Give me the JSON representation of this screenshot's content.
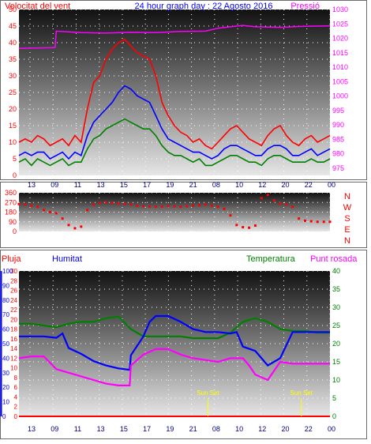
{
  "chart_data": [
    {
      "type": "line",
      "title": "24 hour graph day : 22 Agosto 2016",
      "series": [
        {
          "name": "Velocitat del vent",
          "color": "#ff0000",
          "axis": "left",
          "x": [
            13.0,
            13.5,
            14.0,
            14.5,
            15.0,
            15.5,
            16.0,
            16.5,
            17.0,
            17.5,
            18.0,
            18.5,
            19.0,
            19.5,
            20.0,
            20.5,
            21.0,
            21.5,
            22.0,
            22.5,
            23.0,
            23.5,
            24.0,
            24.5,
            25.0,
            25.5,
            26.0,
            26.5,
            27.0,
            27.5,
            28.0,
            28.5,
            29.0,
            29.5,
            30.0,
            30.5,
            31.0,
            31.5,
            32.0,
            32.5,
            33.0,
            33.5,
            34.0,
            34.5,
            35.0,
            35.5,
            36.0,
            36.5,
            37.0,
            37.5,
            38.0
          ],
          "values": [
            10,
            11,
            10,
            12,
            11,
            9,
            10,
            11,
            9,
            12,
            10,
            20,
            28,
            30,
            35,
            38,
            40,
            41,
            39,
            37,
            36,
            35,
            30,
            22,
            18,
            15,
            13,
            12,
            10,
            11,
            9,
            8,
            10,
            12,
            14,
            15,
            13,
            11,
            10,
            9,
            12,
            14,
            15,
            12,
            10,
            9,
            11,
            12,
            10,
            11,
            12
          ]
        },
        {
          "name": "",
          "color": "#0000ff",
          "axis": "left",
          "x": [
            13.0,
            13.5,
            14.0,
            14.5,
            15.0,
            15.5,
            16.0,
            16.5,
            17.0,
            17.5,
            18.0,
            18.5,
            19.0,
            19.5,
            20.0,
            20.5,
            21.0,
            21.5,
            22.0,
            22.5,
            23.0,
            23.5,
            24.0,
            24.5,
            25.0,
            25.5,
            26.0,
            26.5,
            27.0,
            27.5,
            28.0,
            28.5,
            29.0,
            29.5,
            30.0,
            30.5,
            31.0,
            31.5,
            32.0,
            32.5,
            33.0,
            33.5,
            34.0,
            34.5,
            35.0,
            35.5,
            36.0,
            36.5,
            37.0,
            37.5,
            38.0
          ],
          "values": [
            6,
            7,
            6,
            7,
            7,
            5,
            6,
            7,
            5,
            7,
            6,
            12,
            16,
            18,
            20,
            22,
            25,
            27,
            26,
            24,
            23,
            22,
            18,
            14,
            11,
            10,
            9,
            8,
            7,
            7,
            6,
            5,
            6,
            8,
            9,
            9,
            8,
            7,
            6,
            6,
            8,
            9,
            9,
            8,
            6,
            6,
            7,
            8,
            6,
            7,
            8
          ]
        },
        {
          "name": "",
          "color": "#008000",
          "axis": "left",
          "x": [
            13.0,
            13.5,
            14.0,
            14.5,
            15.0,
            15.5,
            16.0,
            16.5,
            17.0,
            17.5,
            18.0,
            18.5,
            19.0,
            19.5,
            20.0,
            20.5,
            21.0,
            21.5,
            22.0,
            22.5,
            23.0,
            23.5,
            24.0,
            24.5,
            25.0,
            25.5,
            26.0,
            26.5,
            27.0,
            27.5,
            28.0,
            28.5,
            29.0,
            29.5,
            30.0,
            30.5,
            31.0,
            31.5,
            32.0,
            32.5,
            33.0,
            33.5,
            34.0,
            34.5,
            35.0,
            35.5,
            36.0,
            36.5,
            37.0,
            37.5,
            38.0
          ],
          "values": [
            4,
            5,
            3,
            5,
            4,
            3,
            4,
            5,
            3,
            4,
            4,
            8,
            11,
            12,
            14,
            15,
            16,
            17,
            16,
            15,
            14,
            14,
            12,
            9,
            7,
            6,
            6,
            5,
            4,
            5,
            3,
            3,
            4,
            5,
            6,
            6,
            5,
            4,
            4,
            3,
            5,
            6,
            6,
            5,
            4,
            4,
            4,
            5,
            4,
            4,
            5
          ]
        },
        {
          "name": "Pressió",
          "color": "#ff00ff",
          "axis": "right",
          "x": [
            13.0,
            15.9,
            16.0,
            18.0,
            20.0,
            22.0,
            24.0,
            26.0,
            28.0,
            29.0,
            30.0,
            31.0,
            32.0,
            34.0,
            36.0,
            38.0
          ],
          "values": [
            1016.5,
            1016.8,
            1022.5,
            1022.0,
            1021.8,
            1022.1,
            1022.0,
            1022.4,
            1022.5,
            1023.5,
            1024.0,
            1024.5,
            1024.0,
            1023.8,
            1024.2,
            1024.3
          ]
        }
      ],
      "xticks": [
        "13",
        "09",
        "11",
        "13",
        "15",
        "17",
        "19",
        "21",
        "08",
        "10",
        "12",
        "20",
        "22",
        "00"
      ],
      "ylim": [
        0,
        50
      ],
      "yticks": [
        0,
        5,
        10,
        15,
        20,
        25,
        30,
        35,
        40,
        45,
        50
      ],
      "y2lim": [
        972.5,
        1030
      ],
      "y2ticks": [
        975,
        980,
        985,
        990,
        995,
        1000,
        1005,
        1010,
        1015,
        1020,
        1025,
        1030
      ],
      "grid": true
    },
    {
      "type": "scatter",
      "series": [
        {
          "name": "",
          "color": "#ff0000",
          "x": [
            13.0,
            13.5,
            14.0,
            14.5,
            15.0,
            15.5,
            16.0,
            16.5,
            17.0,
            17.5,
            18.0,
            18.5,
            19.0,
            19.5,
            20.0,
            20.5,
            21.0,
            21.5,
            22.0,
            22.5,
            23.0,
            23.5,
            24.0,
            24.5,
            25.0,
            25.5,
            26.0,
            26.5,
            27.0,
            27.5,
            28.0,
            28.5,
            29.0,
            29.5,
            30.0,
            30.5,
            31.0,
            31.5,
            32.0,
            32.5,
            33.0,
            33.5,
            34.0,
            34.5,
            35.0,
            35.5,
            36.0,
            36.5,
            37.0,
            37.5,
            38.0
          ],
          "values": [
            255,
            250,
            240,
            230,
            200,
            180,
            170,
            120,
            60,
            30,
            45,
            200,
            250,
            265,
            270,
            265,
            260,
            255,
            250,
            240,
            235,
            232,
            230,
            232,
            235,
            233,
            230,
            235,
            240,
            245,
            250,
            240,
            230,
            210,
            150,
            60,
            40,
            35,
            55,
            310,
            340,
            290,
            260,
            250,
            230,
            120,
            100,
            95,
            90,
            90,
            90
          ]
        }
      ],
      "y_labels": [
        "N",
        "W",
        "S",
        "E",
        "N"
      ],
      "ylim": [
        0,
        360
      ],
      "yticks": [
        0,
        90,
        180,
        270,
        360
      ],
      "grid": true
    },
    {
      "type": "line",
      "legend": [
        "Pluja",
        "Humitat",
        "Temperatura",
        "Punt rosada"
      ],
      "series": [
        {
          "name": "Temperatura",
          "color": "#008000",
          "x": [
            13.0,
            14.0,
            15.0,
            16.0,
            17.0,
            18.0,
            19.0,
            20.0,
            21.0,
            22.0,
            23.0,
            24.0,
            25.0,
            26.0,
            27.0,
            28.0,
            29.0,
            30.0,
            31.0,
            32.0,
            33.0,
            34.0,
            35.0,
            36.0,
            37.0,
            38.0
          ],
          "values": [
            25.5,
            25.5,
            25.0,
            24.5,
            25.5,
            26.0,
            26.0,
            27.0,
            27.5,
            24.0,
            22.0,
            22.0,
            22.0,
            22.0,
            21.5,
            21.5,
            21.5,
            23.0,
            26.0,
            27.0,
            26.0,
            24.0,
            23.5,
            23.5,
            23.0,
            23.0
          ]
        },
        {
          "name": "Humitat",
          "color": "#0000ff",
          "x": [
            13.0,
            14.0,
            15.0,
            16.0,
            16.5,
            17.0,
            18.0,
            19.0,
            20.0,
            21.0,
            21.9,
            22.0,
            23.0,
            23.5,
            24.0,
            25.0,
            26.0,
            27.0,
            28.0,
            29.0,
            30.0,
            30.5,
            31.0,
            32.0,
            33.0,
            34.0,
            35.0,
            36.0,
            37.0,
            38.0
          ],
          "values": [
            55,
            55,
            55,
            54,
            57,
            47,
            43,
            38,
            35,
            33,
            32,
            42,
            55,
            65,
            69,
            69,
            65,
            60,
            58,
            58,
            57,
            58,
            48,
            45,
            35,
            40,
            58,
            58,
            58,
            58
          ]
        },
        {
          "name": "Punt rosada",
          "color": "#ff00ff",
          "x": [
            13.0,
            14.0,
            15.0,
            16.0,
            17.0,
            18.0,
            19.0,
            20.0,
            21.0,
            21.9,
            22.0,
            23.0,
            24.0,
            25.0,
            26.0,
            27.0,
            28.0,
            29.0,
            30.0,
            31.0,
            31.5,
            32.0,
            33.0,
            34.0,
            35.0,
            36.0,
            37.0,
            38.0
          ],
          "values": [
            16,
            16.5,
            16.5,
            13,
            12,
            11,
            10,
            9,
            8.5,
            8.5,
            14,
            17,
            18.5,
            18.5,
            17,
            16,
            15.5,
            15,
            16,
            16,
            14,
            11.5,
            10,
            15,
            14.5,
            14.5,
            14.5,
            14.5
          ]
        },
        {
          "name": "Pluja",
          "color": "#ff0000",
          "x": [
            13.0,
            38.0
          ],
          "values": [
            0,
            0
          ]
        }
      ],
      "annotations": [
        {
          "text": "Sun Set",
          "x": 28.2
        },
        {
          "text": "Sun Set",
          "x": 35.7
        }
      ],
      "ylim_pluja": [
        0,
        30
      ],
      "yticks_pluja": [
        0,
        2,
        4,
        6,
        8,
        10,
        12,
        14,
        16,
        18,
        20,
        22,
        24,
        26,
        28,
        30
      ],
      "ylim_humitat": [
        0,
        100
      ],
      "yticks_humitat": [
        0,
        10,
        20,
        30,
        40,
        50,
        60,
        70,
        80,
        90,
        100
      ],
      "ylim_temp": [
        0,
        40
      ],
      "yticks_temp": [
        0,
        5,
        10,
        15,
        20,
        25,
        30,
        35,
        40
      ],
      "grid": true
    }
  ]
}
